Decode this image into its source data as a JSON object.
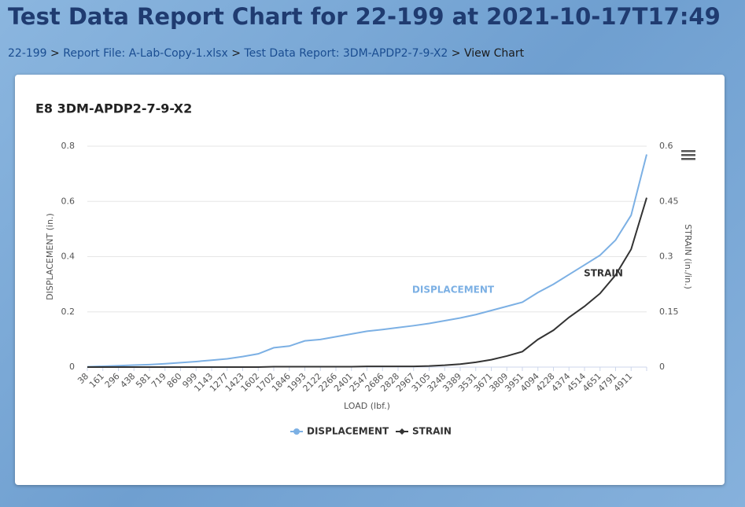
{
  "header": {
    "title": "Test Data Report Chart for 22-199 at 2021-10-17T17:49"
  },
  "breadcrumb": {
    "items": [
      "22-199",
      "Report File: A-Lab-Copy-1.xlsx",
      "Test Data Report: 3DM-APDP2-7-9-X2",
      "View Chart"
    ],
    "separator": ">"
  },
  "chart_data": {
    "type": "line",
    "title": "E8 3DM-APDP2-7-9-X2",
    "x_label": "LOAD (lbf.)",
    "y_label": "DISPLACEMENT (in.)",
    "y2_label": "STRAIN (in./in.)",
    "categories": [
      "38",
      "161",
      "296",
      "438",
      "581",
      "719",
      "860",
      "999",
      "1143",
      "1277",
      "1423",
      "1602",
      "1702",
      "1846",
      "1993",
      "2122",
      "2266",
      "2401",
      "2547",
      "2686",
      "2828",
      "2967",
      "3105",
      "3248",
      "3389",
      "3531",
      "3671",
      "3809",
      "3951",
      "4094",
      "4228",
      "4374",
      "4514",
      "4651",
      "4791",
      "4911",
      null
    ],
    "series": [
      {
        "name": "DISPLACEMENT",
        "color": "#7cb0e4",
        "marker": "circle",
        "values": [
          0.001,
          0.003,
          0.005,
          0.007,
          0.009,
          0.012,
          0.016,
          0.02,
          0.025,
          0.03,
          0.038,
          0.048,
          0.07,
          0.076,
          0.095,
          0.1,
          0.11,
          0.12,
          0.13,
          0.136,
          0.143,
          0.15,
          0.158,
          0.168,
          0.178,
          0.19,
          0.205,
          0.22,
          0.235,
          0.27,
          0.3,
          0.335,
          0.37,
          0.405,
          0.46,
          0.55,
          0.77
        ]
      },
      {
        "name": "STRAIN",
        "color": "#333333",
        "marker": "diamond",
        "axis": "y2",
        "values": [
          0,
          0,
          0,
          0,
          0,
          0,
          0,
          0,
          0,
          0,
          0,
          0,
          0.001,
          0.001,
          0.001,
          0.001,
          0.001,
          0.001,
          0.002,
          0.002,
          0.002,
          0.002,
          0.003,
          0.005,
          0.008,
          0.013,
          0.02,
          0.03,
          0.042,
          0.075,
          0.1,
          0.135,
          0.165,
          0.2,
          0.25,
          0.32,
          0.46
        ]
      }
    ],
    "annotations": [
      "DISPLACEMENT",
      "STRAIN"
    ],
    "ylim": [
      0,
      0.8
    ],
    "yticks": [
      0,
      0.2,
      0.4,
      0.6,
      0.8
    ],
    "y2lim": [
      0,
      0.6
    ],
    "y2ticks": [
      0,
      0.15,
      0.3,
      0.45,
      0.6
    ],
    "grid": true,
    "legend": "bottom"
  }
}
